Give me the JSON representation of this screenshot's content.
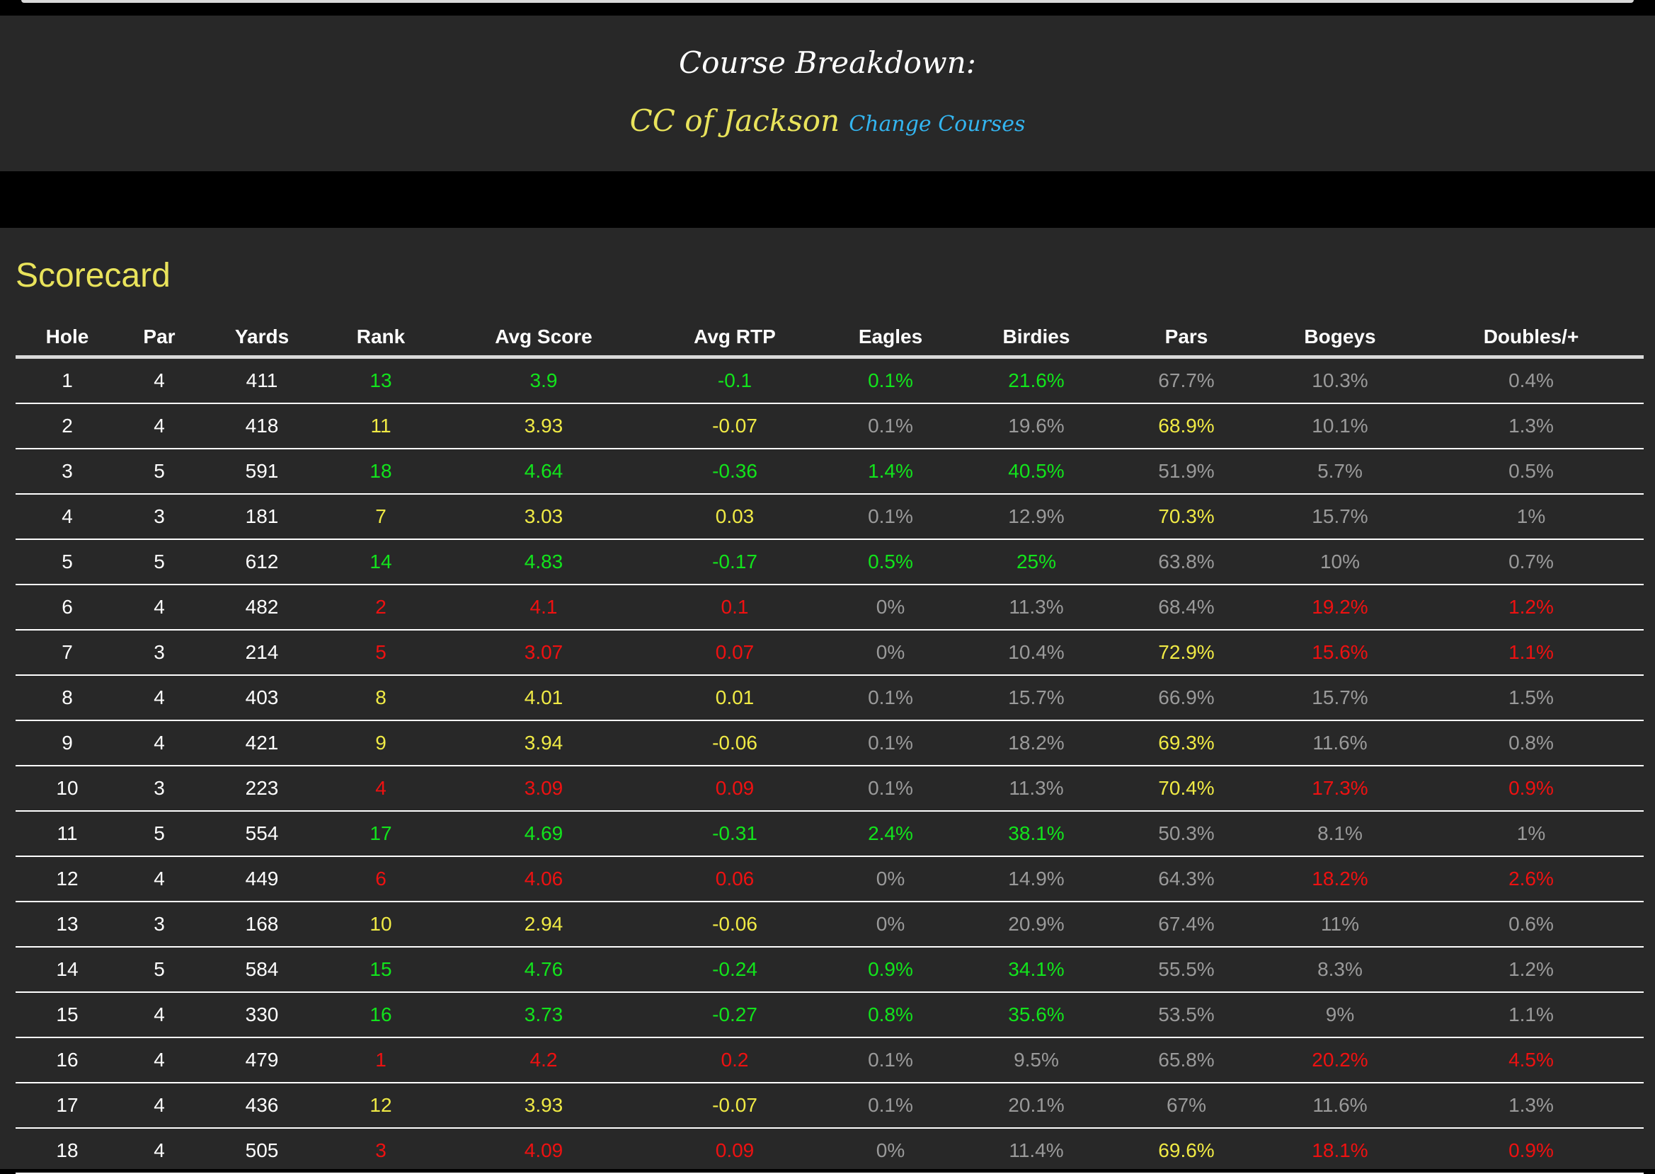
{
  "header": {
    "title": "Course Breakdown:",
    "course_name": "CC of Jackson",
    "change_link": "Change Courses"
  },
  "scorecard": {
    "title": "Scorecard",
    "columns": [
      "Hole",
      "Par",
      "Yards",
      "Rank",
      "Avg Score",
      "Avg RTP",
      "Eagles",
      "Birdies",
      "Pars",
      "Bogeys",
      "Doubles/+"
    ],
    "colors": {
      "green": "#12e41c",
      "yellow": "#f0ea45",
      "red": "#ee1111",
      "gray": "#9a9a9a",
      "white": "#ffffff"
    },
    "rows": [
      {
        "cells": [
          "1",
          "4",
          "411",
          "13",
          "3.9",
          "-0.1",
          "0.1%",
          "21.6%",
          "67.7%",
          "10.3%",
          "0.4%"
        ],
        "tones": [
          "white",
          "white",
          "white",
          "green",
          "green",
          "green",
          "green",
          "green",
          "gray",
          "gray",
          "gray"
        ]
      },
      {
        "cells": [
          "2",
          "4",
          "418",
          "11",
          "3.93",
          "-0.07",
          "0.1%",
          "19.6%",
          "68.9%",
          "10.1%",
          "1.3%"
        ],
        "tones": [
          "white",
          "white",
          "white",
          "yellow",
          "yellow",
          "yellow",
          "gray",
          "gray",
          "yellow",
          "gray",
          "gray"
        ]
      },
      {
        "cells": [
          "3",
          "5",
          "591",
          "18",
          "4.64",
          "-0.36",
          "1.4%",
          "40.5%",
          "51.9%",
          "5.7%",
          "0.5%"
        ],
        "tones": [
          "white",
          "white",
          "white",
          "green",
          "green",
          "green",
          "green",
          "green",
          "gray",
          "gray",
          "gray"
        ]
      },
      {
        "cells": [
          "4",
          "3",
          "181",
          "7",
          "3.03",
          "0.03",
          "0.1%",
          "12.9%",
          "70.3%",
          "15.7%",
          "1%"
        ],
        "tones": [
          "white",
          "white",
          "white",
          "yellow",
          "yellow",
          "yellow",
          "gray",
          "gray",
          "yellow",
          "gray",
          "gray"
        ]
      },
      {
        "cells": [
          "5",
          "5",
          "612",
          "14",
          "4.83",
          "-0.17",
          "0.5%",
          "25%",
          "63.8%",
          "10%",
          "0.7%"
        ],
        "tones": [
          "white",
          "white",
          "white",
          "green",
          "green",
          "green",
          "green",
          "green",
          "gray",
          "gray",
          "gray"
        ]
      },
      {
        "cells": [
          "6",
          "4",
          "482",
          "2",
          "4.1",
          "0.1",
          "0%",
          "11.3%",
          "68.4%",
          "19.2%",
          "1.2%"
        ],
        "tones": [
          "white",
          "white",
          "white",
          "red",
          "red",
          "red",
          "gray",
          "gray",
          "gray",
          "red",
          "red"
        ]
      },
      {
        "cells": [
          "7",
          "3",
          "214",
          "5",
          "3.07",
          "0.07",
          "0%",
          "10.4%",
          "72.9%",
          "15.6%",
          "1.1%"
        ],
        "tones": [
          "white",
          "white",
          "white",
          "red",
          "red",
          "red",
          "gray",
          "gray",
          "yellow",
          "red",
          "red"
        ]
      },
      {
        "cells": [
          "8",
          "4",
          "403",
          "8",
          "4.01",
          "0.01",
          "0.1%",
          "15.7%",
          "66.9%",
          "15.7%",
          "1.5%"
        ],
        "tones": [
          "white",
          "white",
          "white",
          "yellow",
          "yellow",
          "yellow",
          "gray",
          "gray",
          "gray",
          "gray",
          "gray"
        ]
      },
      {
        "cells": [
          "9",
          "4",
          "421",
          "9",
          "3.94",
          "-0.06",
          "0.1%",
          "18.2%",
          "69.3%",
          "11.6%",
          "0.8%"
        ],
        "tones": [
          "white",
          "white",
          "white",
          "yellow",
          "yellow",
          "yellow",
          "gray",
          "gray",
          "yellow",
          "gray",
          "gray"
        ]
      },
      {
        "cells": [
          "10",
          "3",
          "223",
          "4",
          "3.09",
          "0.09",
          "0.1%",
          "11.3%",
          "70.4%",
          "17.3%",
          "0.9%"
        ],
        "tones": [
          "white",
          "white",
          "white",
          "red",
          "red",
          "red",
          "gray",
          "gray",
          "yellow",
          "red",
          "red"
        ]
      },
      {
        "cells": [
          "11",
          "5",
          "554",
          "17",
          "4.69",
          "-0.31",
          "2.4%",
          "38.1%",
          "50.3%",
          "8.1%",
          "1%"
        ],
        "tones": [
          "white",
          "white",
          "white",
          "green",
          "green",
          "green",
          "green",
          "green",
          "gray",
          "gray",
          "gray"
        ]
      },
      {
        "cells": [
          "12",
          "4",
          "449",
          "6",
          "4.06",
          "0.06",
          "0%",
          "14.9%",
          "64.3%",
          "18.2%",
          "2.6%"
        ],
        "tones": [
          "white",
          "white",
          "white",
          "red",
          "red",
          "red",
          "gray",
          "gray",
          "gray",
          "red",
          "red"
        ]
      },
      {
        "cells": [
          "13",
          "3",
          "168",
          "10",
          "2.94",
          "-0.06",
          "0%",
          "20.9%",
          "67.4%",
          "11%",
          "0.6%"
        ],
        "tones": [
          "white",
          "white",
          "white",
          "yellow",
          "yellow",
          "yellow",
          "gray",
          "gray",
          "gray",
          "gray",
          "gray"
        ]
      },
      {
        "cells": [
          "14",
          "5",
          "584",
          "15",
          "4.76",
          "-0.24",
          "0.9%",
          "34.1%",
          "55.5%",
          "8.3%",
          "1.2%"
        ],
        "tones": [
          "white",
          "white",
          "white",
          "green",
          "green",
          "green",
          "green",
          "green",
          "gray",
          "gray",
          "gray"
        ]
      },
      {
        "cells": [
          "15",
          "4",
          "330",
          "16",
          "3.73",
          "-0.27",
          "0.8%",
          "35.6%",
          "53.5%",
          "9%",
          "1.1%"
        ],
        "tones": [
          "white",
          "white",
          "white",
          "green",
          "green",
          "green",
          "green",
          "green",
          "gray",
          "gray",
          "gray"
        ]
      },
      {
        "cells": [
          "16",
          "4",
          "479",
          "1",
          "4.2",
          "0.2",
          "0.1%",
          "9.5%",
          "65.8%",
          "20.2%",
          "4.5%"
        ],
        "tones": [
          "white",
          "white",
          "white",
          "red",
          "red",
          "red",
          "gray",
          "gray",
          "gray",
          "red",
          "red"
        ]
      },
      {
        "cells": [
          "17",
          "4",
          "436",
          "12",
          "3.93",
          "-0.07",
          "0.1%",
          "20.1%",
          "67%",
          "11.6%",
          "1.3%"
        ],
        "tones": [
          "white",
          "white",
          "white",
          "yellow",
          "yellow",
          "yellow",
          "gray",
          "gray",
          "gray",
          "gray",
          "gray"
        ]
      },
      {
        "cells": [
          "18",
          "4",
          "505",
          "3",
          "4.09",
          "0.09",
          "0%",
          "11.4%",
          "69.6%",
          "18.1%",
          "0.9%"
        ],
        "tones": [
          "white",
          "white",
          "white",
          "red",
          "red",
          "red",
          "gray",
          "gray",
          "yellow",
          "red",
          "red"
        ]
      }
    ]
  }
}
